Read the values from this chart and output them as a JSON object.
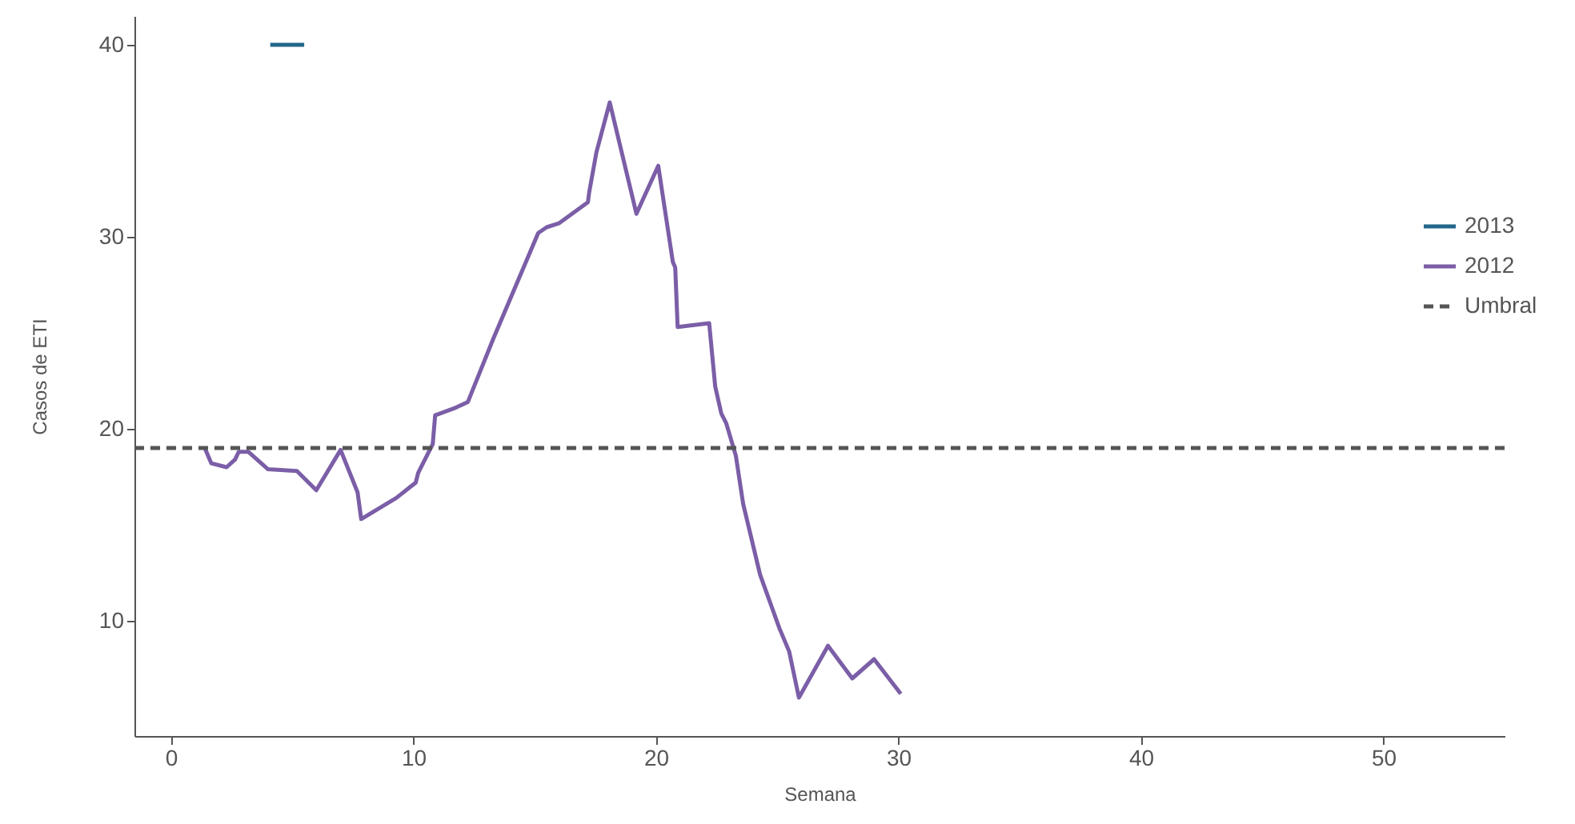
{
  "chart_data": {
    "type": "line",
    "xlabel": "Semana",
    "ylabel": "Casos de ETI",
    "xlim": [
      -1.5,
      55
    ],
    "ylim": [
      4,
      41.5
    ],
    "xticks": [
      0,
      10,
      20,
      30,
      40,
      50
    ],
    "yticks": [
      10,
      20,
      30,
      40
    ],
    "series": [
      {
        "name": "2013",
        "color": "#22668a",
        "x": [
          4.1,
          5.5
        ],
        "values": [
          40,
          40
        ]
      },
      {
        "name": "2012",
        "color": "#7b5ea7",
        "x": [
          1.4,
          1.67,
          2.3,
          2.65,
          2.8,
          3.2,
          4.0,
          5.2,
          6.0,
          7.0,
          7.7,
          7.85,
          9.3,
          10.1,
          10.2,
          10.8,
          10.9,
          11.75,
          12.25,
          13.3,
          15.15,
          15.5,
          16.0,
          17.2,
          17.25,
          17.55,
          18.1,
          19.2,
          20.1,
          20.7,
          20.8,
          20.9,
          22.2,
          22.45,
          22.7,
          22.9,
          23.3,
          23.6,
          24.3,
          25.1,
          25.5,
          25.9,
          27.1,
          28.1,
          29.0,
          30.1
        ],
        "values": [
          19.0,
          18.2,
          18.0,
          18.4,
          18.8,
          18.8,
          17.9,
          17.8,
          16.8,
          18.9,
          16.7,
          15.3,
          16.4,
          17.2,
          17.7,
          19.2,
          20.7,
          21.1,
          21.4,
          24.7,
          30.2,
          30.5,
          30.7,
          31.8,
          32.3,
          34.4,
          37.0,
          31.2,
          33.7,
          28.7,
          28.4,
          25.3,
          25.5,
          22.2,
          20.8,
          20.3,
          18.6,
          16.1,
          12.4,
          9.6,
          8.4,
          6.0,
          8.7,
          7.0,
          8.0,
          6.2
        ]
      }
    ],
    "ref_lines": [
      {
        "axis": "y",
        "value": 19,
        "label": "Umbral",
        "color": "#555555",
        "line_style": "dashed"
      }
    ],
    "legend": "right",
    "grid": false,
    "line_style": "solid"
  }
}
